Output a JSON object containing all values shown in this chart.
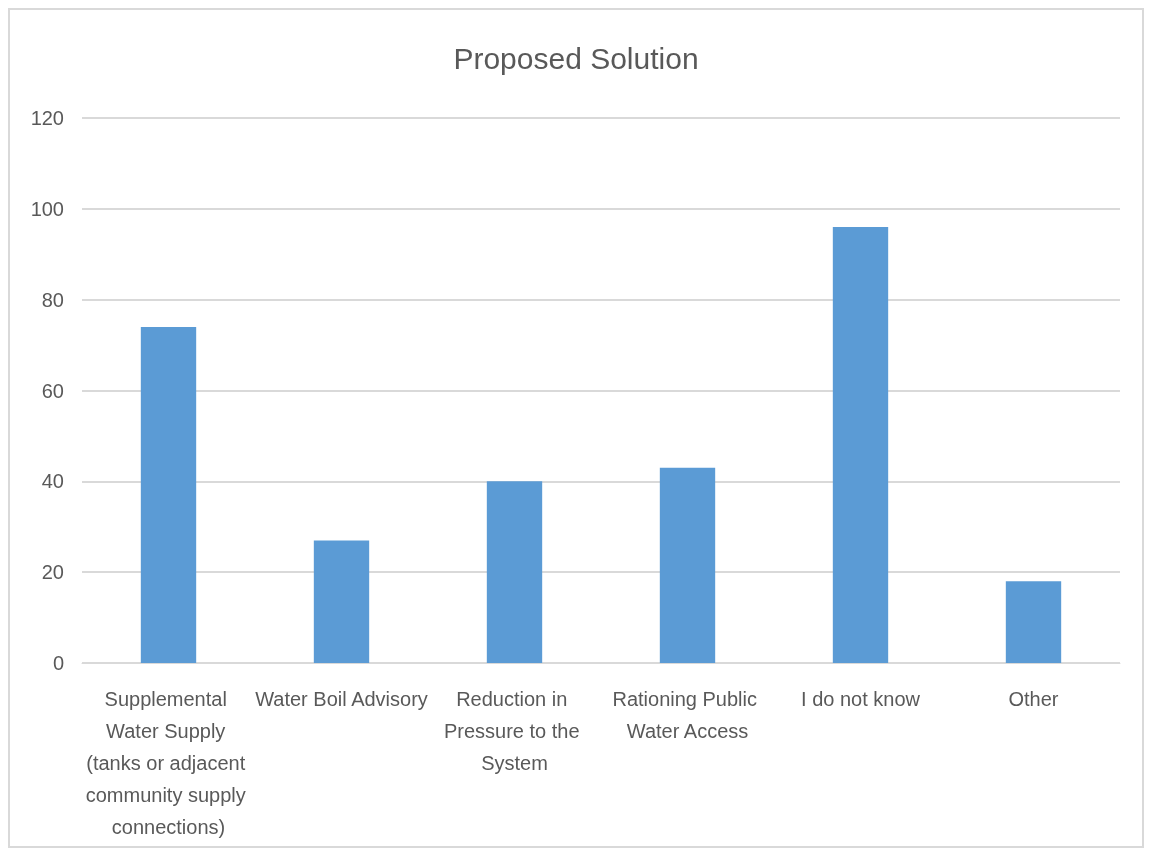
{
  "chart_data": {
    "type": "bar",
    "title": "Proposed Solution",
    "categories": [
      "Supplemental Water Supply (tanks or adjacent community supply connections)",
      "Water Boil Advisory",
      "Reduction in Pressure to the System",
      "Rationing Public Water Access",
      "I do not know",
      "Other"
    ],
    "values": [
      74,
      27,
      40,
      43,
      96,
      18
    ],
    "color": "#5b9bd5",
    "ylim": [
      0,
      120
    ],
    "yticks": [
      0,
      20,
      40,
      60,
      80,
      100,
      120
    ],
    "grid": "y"
  }
}
